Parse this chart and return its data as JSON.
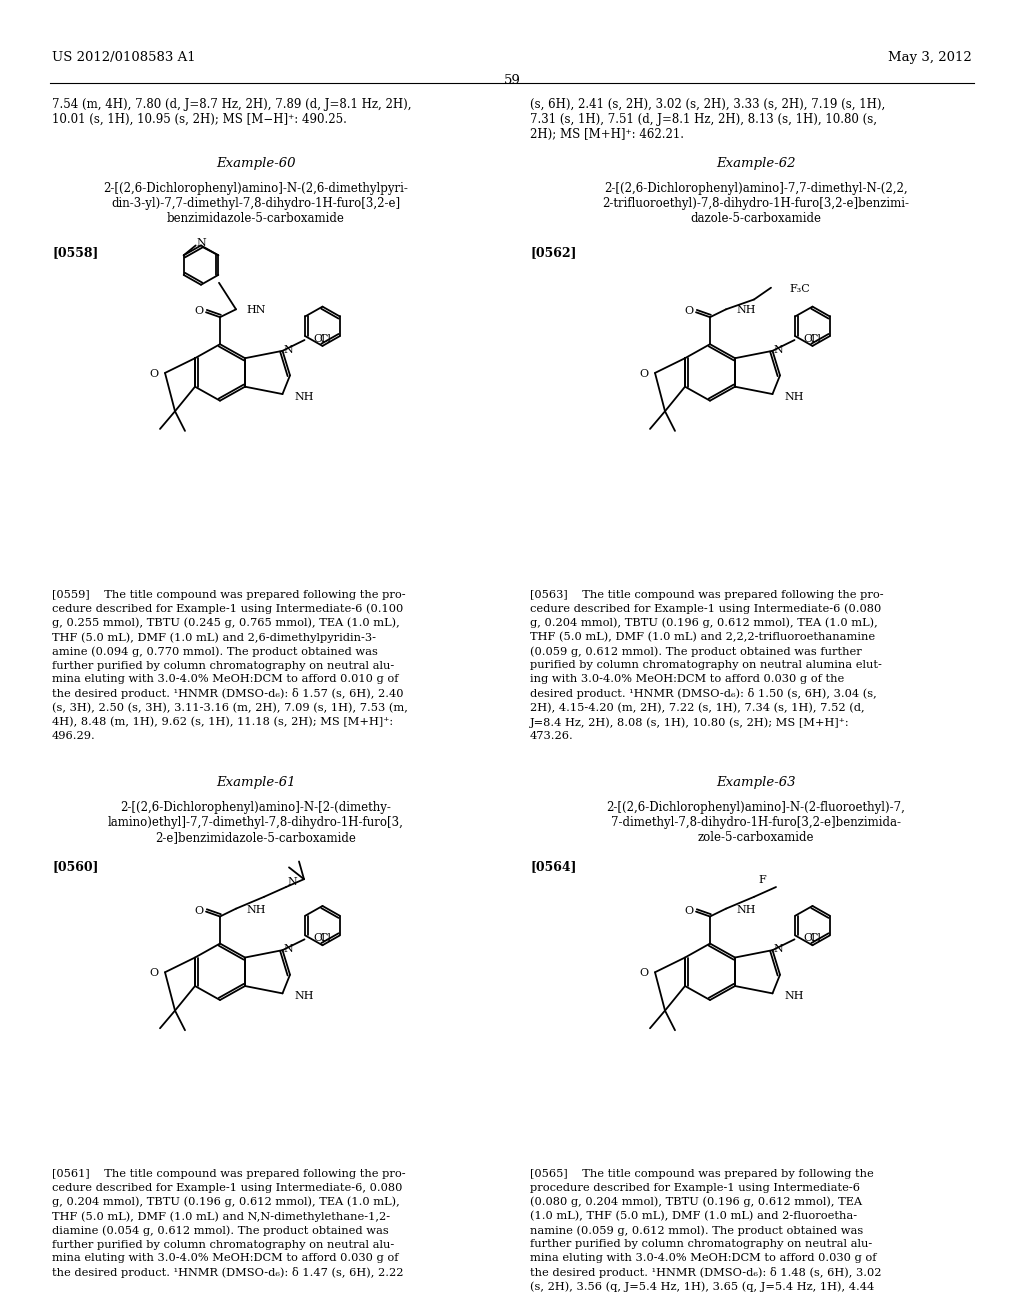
{
  "page_header_left": "US 2012/0108583 A1",
  "page_header_right": "May 3, 2012",
  "page_number": "59",
  "background_color": "#ffffff",
  "text_color": "#000000",
  "font_size_body": 8.5,
  "font_size_header": 9.5,
  "font_size_example": 9.5,
  "font_size_paragraph_label": 9.0,
  "top_text_left": "7.54 (m, 4H), 7.80 (d, J=8.7 Hz, 2H), 7.89 (d, J=8.1 Hz, 2H),\n10.01 (s, 1H), 10.95 (s, 2H); MS [M−H]⁺: 490.25.",
  "top_text_right": "(s, 6H), 2.41 (s, 2H), 3.02 (s, 2H), 3.33 (s, 2H), 7.19 (s, 1H),\n7.31 (s, 1H), 7.51 (d, J=8.1 Hz, 2H), 8.13 (s, 1H), 10.80 (s,\n2H); MS [M+H]⁺: 462.21.",
  "example60_title": "Example-60",
  "example60_compound": "2-[(2,6-Dichlorophenyl)amino]-N-(2,6-dimethylpyri-\ndin-3-yl)-7,7-dimethyl-7,8-dihydro-1H-furo[3,2-e]\nbenzimidazole-5-carboxamide",
  "example60_label": "[0558]",
  "example60_procedure": "[0559]    The title compound was prepared following the pro-\ncedure described for Example-1 using Intermediate-6 (0.100\ng, 0.255 mmol), TBTU (0.245 g, 0.765 mmol), TEA (1.0 mL),\nTHF (5.0 mL), DMF (1.0 mL) and 2,6-dimethylpyridin-3-\namine (0.094 g, 0.770 mmol). The product obtained was\nfurther purified by column chromatography on neutral alu-\nmina eluting with 3.0-4.0% MeOH:DCM to afford 0.010 g of\nthe desired product. ¹HNMR (DMSO-d₆): δ 1.57 (s, 6H), 2.40\n(s, 3H), 2.50 (s, 3H), 3.11-3.16 (m, 2H), 7.09 (s, 1H), 7.53 (m,\n4H), 8.48 (m, 1H), 9.62 (s, 1H), 11.18 (s, 2H); MS [M+H]⁺:\n496.29.",
  "example62_title": "Example-62",
  "example62_compound": "2-[(2,6-Dichlorophenyl)amino]-7,7-dimethyl-N-(2,2,\n2-trifluoroethyl)-7,8-dihydro-1H-furo[3,2-e]benzimi-\ndazole-5-carboxamide",
  "example62_label": "[0562]",
  "example62_procedure": "[0563]    The title compound was prepared following the pro-\ncedure described for Example-1 using Intermediate-6 (0.080\ng, 0.204 mmol), TBTU (0.196 g, 0.612 mmol), TEA (1.0 mL),\nTHF (5.0 mL), DMF (1.0 mL) and 2,2,2-trifluoroethanamine\n(0.059 g, 0.612 mmol). The product obtained was further\npurified by column chromatography on neutral alumina elut-\ning with 3.0-4.0% MeOH:DCM to afford 0.030 g of the\ndesired product. ¹HNMR (DMSO-d₆): δ 1.50 (s, 6H), 3.04 (s,\n2H), 4.15-4.20 (m, 2H), 7.22 (s, 1H), 7.34 (s, 1H), 7.52 (d,\nJ=8.4 Hz, 2H), 8.08 (s, 1H), 10.80 (s, 2H); MS [M+H]⁺:\n473.26.",
  "example61_title": "Example-61",
  "example61_compound": "2-[(2,6-Dichlorophenyl)amino]-N-[2-(dimethy-\nlamino)ethyl]-7,7-dimethyl-7,8-dihydro-1H-furo[3,\n2-e]benzimidazole-5-carboxamide",
  "example61_label": "[0560]",
  "example61_procedure": "[0561]    The title compound was prepared following the pro-\ncedure described for Example-1 using Intermediate-6, 0.080\ng, 0.204 mmol), TBTU (0.196 g, 0.612 mmol), TEA (1.0 mL),\nTHF (5.0 mL), DMF (1.0 mL) and N,N-dimethylethane-1,2-\ndiamine (0.054 g, 0.612 mmol). The product obtained was\nfurther purified by column chromatography on neutral alu-\nmina eluting with 3.0-4.0% MeOH:DCM to afford 0.030 g of\nthe desired product. ¹HNMR (DMSO-d₆): δ 1.47 (s, 6H), 2.22",
  "example63_title": "Example-63",
  "example63_compound": "2-[(2,6-Dichlorophenyl)amino]-N-(2-fluoroethyl)-7,\n7-dimethyl-7,8-dihydro-1H-furo[3,2-e]benzimida-\nzole-5-carboxamide",
  "example63_label": "[0564]",
  "example63_procedure": "[0565]    The title compound was prepared by following the\nprocedure described for Example-1 using Intermediate-6\n(0.080 g, 0.204 mmol), TBTU (0.196 g, 0.612 mmol), TEA\n(1.0 mL), THF (5.0 mL), DMF (1.0 mL) and 2-fluoroetha-\nnamine (0.059 g, 0.612 mmol). The product obtained was\nfurther purified by column chromatography on neutral alu-\nmina eluting with 3.0-4.0% MeOH:DCM to afford 0.030 g of\nthe desired product. ¹HNMR (DMSO-d₆): δ 1.48 (s, 6H), 3.02\n(s, 2H), 3.56 (q, J=5.4 Hz, 1H), 3.65 (q, J=5.4 Hz, 1H), 4.44"
}
